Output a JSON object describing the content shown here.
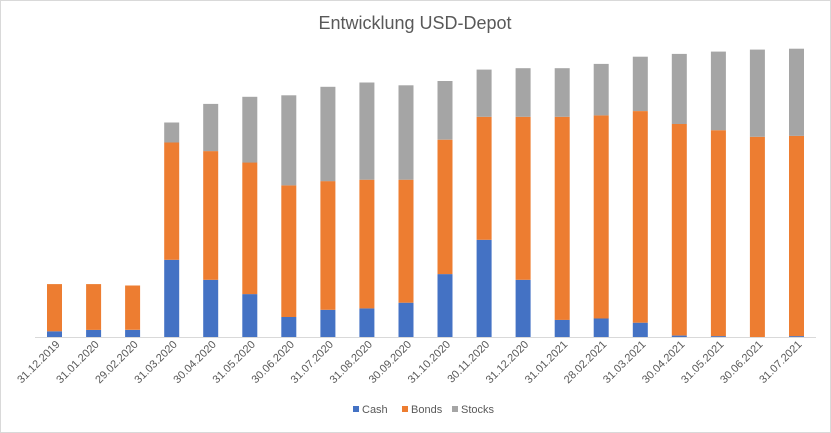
{
  "chart_data": {
    "type": "bar",
    "stacked": true,
    "title": "Entwicklung USD-Depot",
    "xlabel": "",
    "ylabel": "",
    "ylim": [
      0,
      100
    ],
    "grid": false,
    "legend_position": "bottom",
    "categories": [
      "31.12.2019",
      "31.01.2020",
      "29.02.2020",
      "31.03.2020",
      "30.04.2020",
      "31.05.2020",
      "30.06.2020",
      "31.07.2020",
      "31.08.2020",
      "30.09.2020",
      "31.10.2020",
      "30.11.2020",
      "31.12.2020",
      "31.01.2021",
      "28.02.2021",
      "31.03.2021",
      "30.04.2021",
      "31.05.2021",
      "30.06.2021",
      "31.07.2021"
    ],
    "series": [
      {
        "name": "Cash",
        "color": "#4472c4",
        "values": [
          2,
          2.5,
          2.5,
          27,
          20,
          15,
          7,
          9.5,
          10,
          12,
          22,
          34,
          20,
          6,
          6.5,
          5,
          0.5,
          0.3,
          0,
          0.3
        ]
      },
      {
        "name": "Bonds",
        "color": "#ed7d31",
        "values": [
          16.5,
          16,
          15.5,
          41,
          45,
          46,
          46,
          45,
          45,
          43,
          47,
          43,
          57,
          71,
          71,
          74,
          74,
          72,
          70,
          70
        ]
      },
      {
        "name": "Stocks",
        "color": "#a5a5a5",
        "values": [
          0,
          0,
          0,
          7,
          16.5,
          23,
          31.5,
          33,
          34,
          33,
          20.5,
          16.5,
          17,
          17,
          18,
          19,
          24.5,
          27.5,
          30.5,
          30.5
        ]
      }
    ]
  }
}
